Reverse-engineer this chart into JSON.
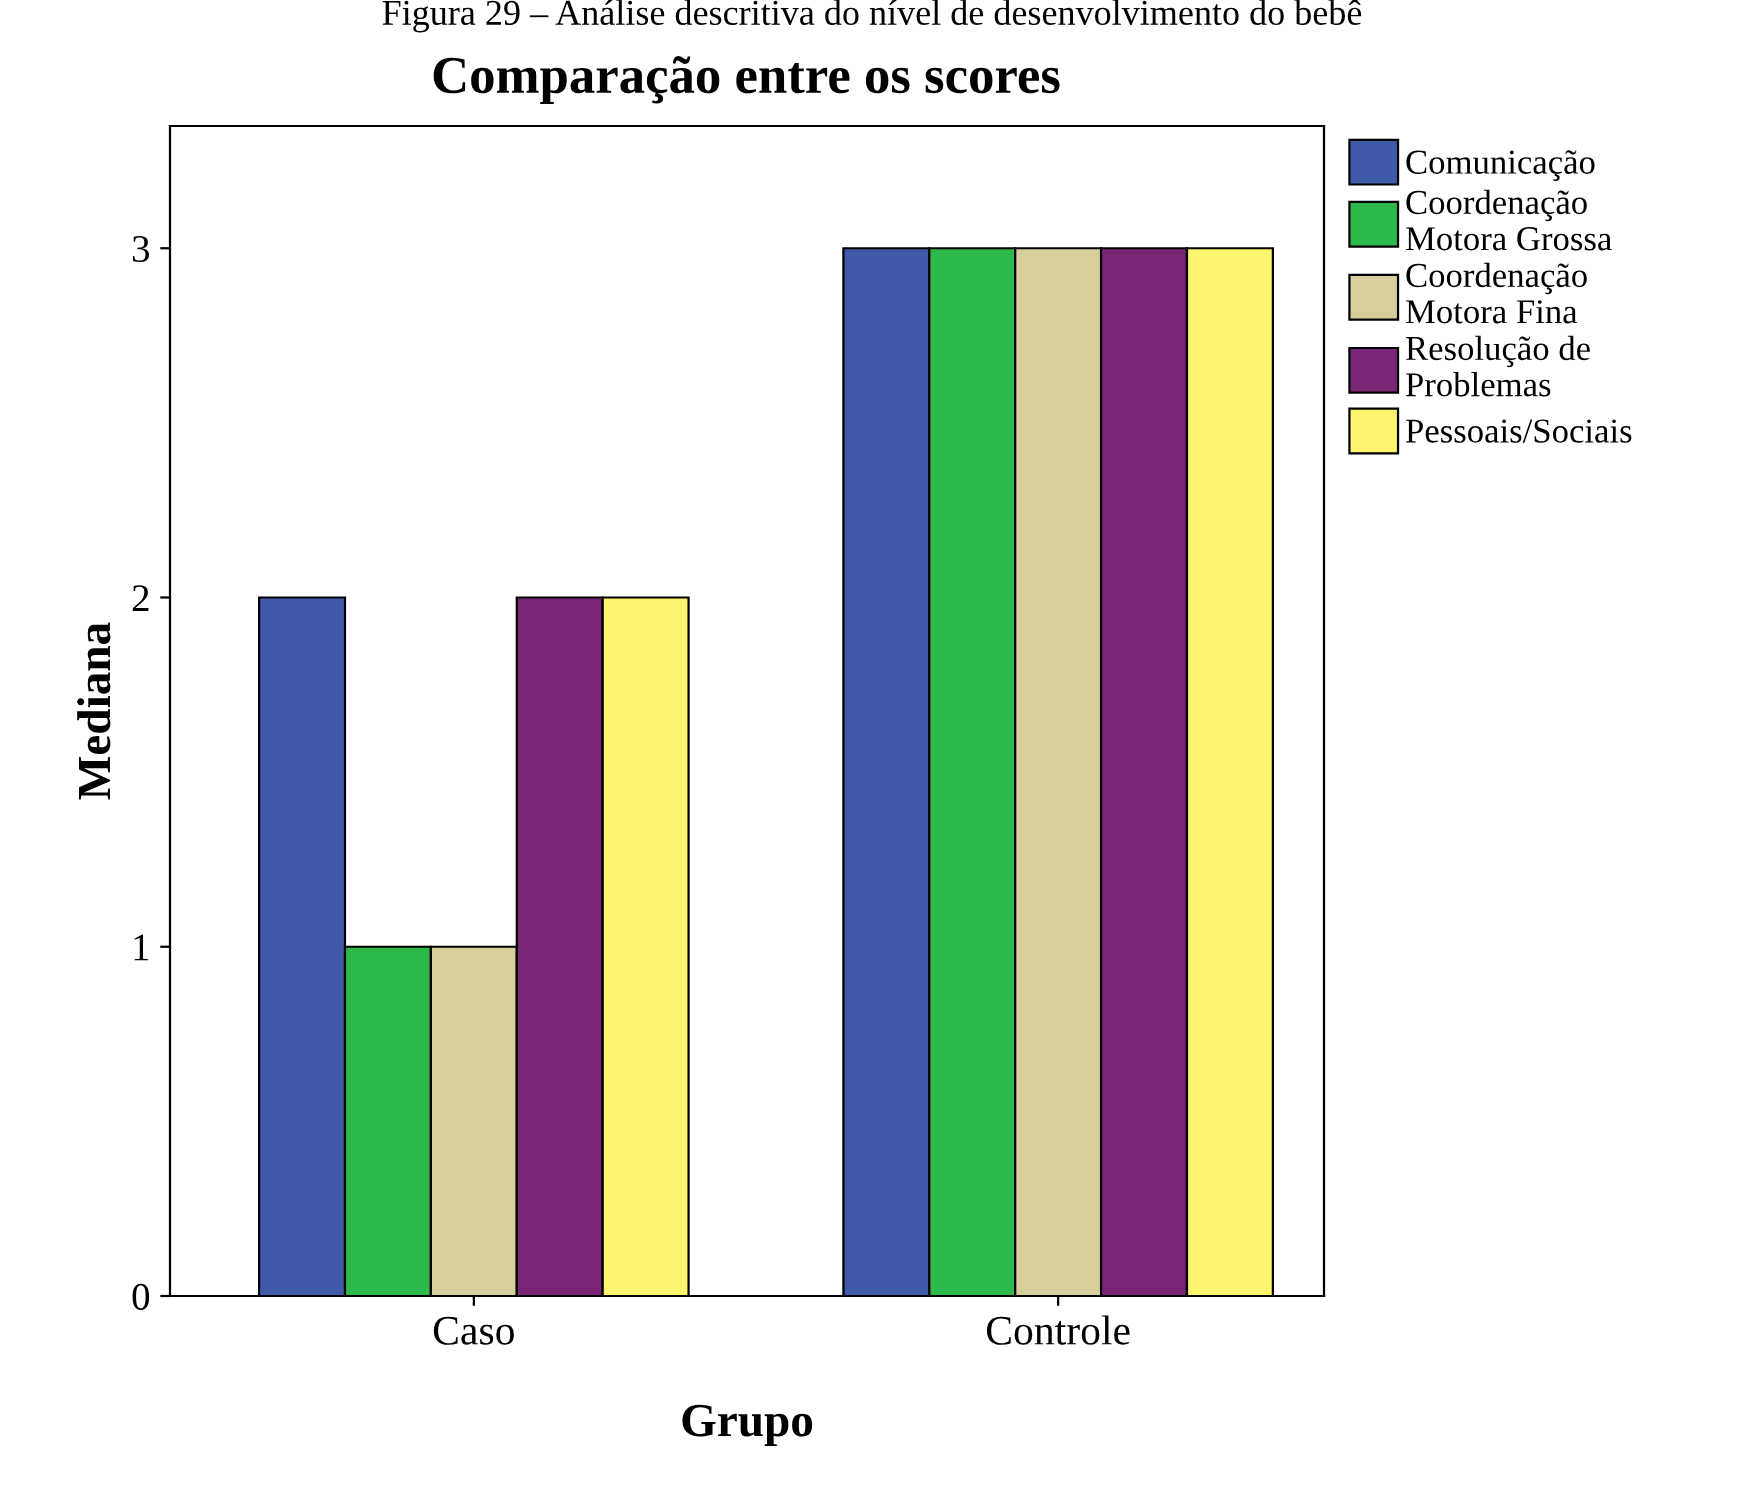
{
  "chart_data": {
    "type": "bar",
    "title": "Comparação entre os scores",
    "xlabel": "Grupo",
    "ylabel": "Mediana",
    "annotations": [
      "Figura 29 – Análise descritiva do nível de desenvolvimento do bebê"
    ],
    "categories": [
      "Caso",
      "Controle"
    ],
    "series": [
      {
        "name": "Comunicação",
        "color": "#3f5aa8",
        "values": [
          2,
          3
        ]
      },
      {
        "name": "Coordenação\nMotora Grossa",
        "color": "#2db84a",
        "values": [
          1,
          3
        ]
      },
      {
        "name": "Coordenação\nMotora Fina",
        "color": "#d6cf9b",
        "values": [
          1,
          3
        ]
      },
      {
        "name": "Resolução de\nProblemas",
        "color": "#7b2577",
        "values": [
          2,
          3
        ]
      },
      {
        "name": "Pessoais/Sociais",
        "color": "#fdf56d",
        "values": [
          2,
          3
        ]
      }
    ],
    "ylim": [
      0,
      3.35
    ],
    "yticks": [
      0,
      1,
      2,
      3
    ],
    "grid": false,
    "legend": "top right"
  }
}
